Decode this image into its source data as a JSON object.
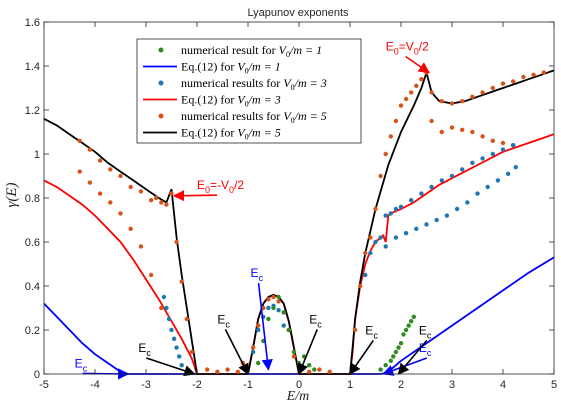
{
  "chart_data": {
    "type": "scatter",
    "title": "Lyapunov exponents",
    "xlabel": "E/m",
    "ylabel": "γ(E)",
    "xlim": [
      -5,
      5
    ],
    "ylim": [
      0,
      1.6
    ],
    "xticks": [
      -5,
      -4,
      -3,
      -2,
      -1,
      0,
      1,
      2,
      3,
      4,
      5
    ],
    "yticks": [
      0,
      0.2,
      0.4,
      0.6,
      0.8,
      1,
      1.2,
      1.4,
      1.6
    ],
    "xtick_labels": [
      "-5",
      "-4",
      "-3",
      "-2",
      "-1",
      "0",
      "1",
      "2",
      "3",
      "4",
      "5"
    ],
    "ytick_labels": [
      "0",
      "0.2",
      "0.4",
      "0.6",
      "0.8",
      "1",
      "1.2",
      "1.4",
      "1.6"
    ],
    "grid": false,
    "legend_position": "top-center",
    "legend": [
      {
        "text_plain": "numerical result for ",
        "text_italic": "V",
        "sub": "0",
        "tail": "/m = 1",
        "marker": "dot",
        "color": "#2e8b1e"
      },
      {
        "text_plain": "Eq.(12) for ",
        "text_italic": "V",
        "sub": "0",
        "tail": "/m = 1",
        "marker": "line",
        "color": "#0000ff"
      },
      {
        "text_plain": "numerical results for ",
        "text_italic": "V",
        "sub": "0",
        "tail": "/m = 3",
        "marker": "dot",
        "color": "#1f77b4"
      },
      {
        "text_plain": "Eq.(12) for ",
        "text_italic": "V",
        "sub": "0",
        "tail": "/m = 3",
        "marker": "line",
        "color": "#ff0000"
      },
      {
        "text_plain": "numerical results for ",
        "text_italic": "V",
        "sub": "0",
        "tail": "/m = 5",
        "marker": "dot",
        "color": "#d95319"
      },
      {
        "text_plain": "Eq.(12) for ",
        "text_italic": "V",
        "sub": "0",
        "tail": "/m = 5",
        "marker": "line",
        "color": "#000000"
      }
    ],
    "series": [
      {
        "kind": "line",
        "color": "#0000ff",
        "x": [
          -5,
          -4.75,
          -4.5,
          -4.25,
          -4,
          -3.75,
          -3.5,
          -3.35,
          -3.2,
          -3,
          -2,
          -1,
          -0.6,
          -0.3,
          0,
          0.5,
          1,
          1.35,
          1.6,
          1.7,
          1.85,
          2,
          2.25,
          2.5,
          3,
          3.5,
          4,
          4.5,
          5
        ],
        "y": [
          0.32,
          0.26,
          0.2,
          0.14,
          0.09,
          0.05,
          0.01,
          0,
          0,
          0,
          0,
          0,
          0,
          0,
          0,
          0,
          0,
          0,
          0,
          0.005,
          0.03,
          0.06,
          0.1,
          0.14,
          0.22,
          0.3,
          0.38,
          0.46,
          0.53
        ]
      },
      {
        "kind": "line",
        "color": "#ff0000",
        "x": [
          -5,
          -4.75,
          -4.5,
          -4.25,
          -4,
          -3.75,
          -3.5,
          -3.25,
          -3,
          -2.75,
          -2.5,
          -2.3,
          -2.1,
          -2,
          -1.5,
          -1,
          -0.9,
          -0.8,
          -0.7,
          -0.6,
          -0.5,
          -0.4,
          -0.3,
          -0.2,
          -0.1,
          0,
          0.5,
          1,
          1.05,
          1.1,
          1.2,
          1.3,
          1.4,
          1.5,
          1.6,
          1.65,
          1.7,
          1.75,
          1.8,
          1.9,
          2,
          2.25,
          2.5,
          2.75,
          3,
          3.25,
          3.5,
          3.75,
          4,
          4.25,
          4.5,
          4.75,
          5
        ],
        "y": [
          0.88,
          0.85,
          0.81,
          0.77,
          0.72,
          0.66,
          0.6,
          0.52,
          0.43,
          0.34,
          0.24,
          0.16,
          0.07,
          0,
          0,
          0,
          0.12,
          0.25,
          0.32,
          0.35,
          0.36,
          0.35,
          0.32,
          0.24,
          0.12,
          0,
          0,
          0,
          0.1,
          0.25,
          0.4,
          0.5,
          0.56,
          0.6,
          0.62,
          0.63,
          0.6,
          0.72,
          0.73,
          0.74,
          0.75,
          0.78,
          0.82,
          0.86,
          0.89,
          0.92,
          0.95,
          0.98,
          1.01,
          1.03,
          1.05,
          1.07,
          1.09
        ]
      },
      {
        "kind": "line",
        "color": "#000000",
        "x": [
          -5,
          -4.75,
          -4.5,
          -4.25,
          -4,
          -3.75,
          -3.5,
          -3.25,
          -3,
          -2.75,
          -2.6,
          -2.5,
          -2.4,
          -2.3,
          -2.2,
          -2.1,
          -2,
          -1.5,
          -1,
          -0.9,
          -0.8,
          -0.7,
          -0.6,
          -0.5,
          -0.4,
          -0.3,
          -0.2,
          -0.1,
          0,
          0.5,
          1,
          1.05,
          1.1,
          1.2,
          1.3,
          1.5,
          1.75,
          2,
          2.25,
          2.4,
          2.5,
          2.6,
          2.75,
          3,
          3.25,
          3.5,
          3.75,
          4,
          4.25,
          4.5,
          4.75,
          5
        ],
        "y": [
          1.16,
          1.13,
          1.09,
          1.05,
          1.01,
          0.96,
          0.92,
          0.88,
          0.84,
          0.8,
          0.78,
          0.84,
          0.62,
          0.45,
          0.3,
          0.15,
          0,
          0,
          0,
          0.12,
          0.25,
          0.32,
          0.35,
          0.36,
          0.35,
          0.32,
          0.24,
          0.12,
          0,
          0,
          0,
          0.12,
          0.25,
          0.42,
          0.55,
          0.75,
          0.95,
          1.1,
          1.22,
          1.3,
          1.37,
          1.28,
          1.24,
          1.23,
          1.24,
          1.26,
          1.28,
          1.3,
          1.32,
          1.34,
          1.36,
          1.38
        ]
      },
      {
        "kind": "scatter",
        "color": "#d95319",
        "name_ref": "V0/m=5",
        "x": [
          -4.3,
          -4.1,
          -3.9,
          -3.7,
          -3.5,
          -3.3,
          -3.1,
          -2.9,
          -2.8,
          -2.7,
          -2.6,
          -2.5,
          -2.4,
          -2.3,
          -2.2,
          -2.1,
          -4.3,
          -4.1,
          -3.9,
          -3.7,
          -3.5,
          -3.3,
          -3.1,
          -2.9,
          -2.7,
          -1.8,
          -1.6,
          -1.4,
          -1.2,
          -1.1,
          -0.9,
          -0.8,
          -0.7,
          -0.6,
          -0.5,
          -0.4,
          -0.3,
          -0.2,
          -0.1,
          0.2,
          0.4,
          0.6,
          1.1,
          1.2,
          1.3,
          1.4,
          1.5,
          1.6,
          1.7,
          1.8,
          1.9,
          2.0,
          2.1,
          2.2,
          2.3,
          2.4,
          2.5,
          2.6,
          2.8,
          3.0,
          3.2,
          3.4,
          3.6,
          3.8,
          4.0,
          4.2,
          4.4,
          4.6,
          4.8,
          2.6,
          2.8,
          3.0,
          3.2,
          3.4,
          3.6,
          3.8,
          4.0,
          4.2
        ],
        "y": [
          1.06,
          1.02,
          0.97,
          0.93,
          0.9,
          0.85,
          0.83,
          0.79,
          0.8,
          0.78,
          0.77,
          0.82,
          0.6,
          0.42,
          0.25,
          0.1,
          0.92,
          0.87,
          0.82,
          0.78,
          0.73,
          0.66,
          0.58,
          0.45,
          0.3,
          0.02,
          0.01,
          0.02,
          0.01,
          0.05,
          0.12,
          0.22,
          0.3,
          0.34,
          0.35,
          0.33,
          0.28,
          0.2,
          0.08,
          0.01,
          0.02,
          0.01,
          0.2,
          0.4,
          0.55,
          0.62,
          0.75,
          0.9,
          1.0,
          1.08,
          1.15,
          1.22,
          1.25,
          1.28,
          1.31,
          1.34,
          1.37,
          1.28,
          1.24,
          1.23,
          1.24,
          1.26,
          1.28,
          1.3,
          1.32,
          1.33,
          1.35,
          1.36,
          1.37,
          1.15,
          1.1,
          1.12,
          1.11,
          1.1,
          1.08,
          1.06,
          1.05,
          1.04
        ]
      },
      {
        "kind": "scatter",
        "color": "#1f77b4",
        "name_ref": "V0/m=3",
        "x": [
          -2.65,
          -2.6,
          -2.55,
          -2.5,
          -2.45,
          -2.4,
          -2.35,
          -2.3,
          -0.9,
          -0.8,
          -0.7,
          -0.6,
          -0.5,
          -0.4,
          -0.3,
          1.3,
          1.4,
          1.5,
          1.6,
          1.7,
          1.8,
          1.9,
          2.0,
          2.2,
          2.4,
          2.6,
          2.8,
          3.0,
          3.2,
          3.4,
          3.6,
          3.8,
          4.0,
          4.2,
          1.7,
          1.9,
          2.1,
          2.3,
          2.5,
          2.7,
          2.9,
          3.1,
          3.3,
          3.5,
          3.7,
          3.9,
          4.1,
          4.25
        ],
        "y": [
          0.35,
          0.3,
          0.25,
          0.2,
          0.16,
          0.12,
          0.08,
          0.04,
          0.1,
          0.2,
          0.26,
          0.3,
          0.31,
          0.29,
          0.22,
          0.45,
          0.55,
          0.6,
          0.62,
          0.72,
          0.73,
          0.75,
          0.76,
          0.79,
          0.82,
          0.85,
          0.88,
          0.9,
          0.93,
          0.96,
          0.98,
          1.0,
          1.02,
          1.04,
          0.58,
          0.62,
          0.64,
          0.66,
          0.68,
          0.7,
          0.72,
          0.75,
          0.78,
          0.82,
          0.85,
          0.88,
          0.91,
          0.94
        ]
      },
      {
        "kind": "scatter",
        "color": "#2e8b1e",
        "name_ref": "V0/m=1",
        "x": [
          -0.8,
          -0.7,
          -0.6,
          -0.5,
          -0.4,
          -0.3,
          -0.2,
          -0.1,
          0.0,
          0.1,
          0.2,
          0.3,
          1.6,
          1.7,
          1.8,
          1.9,
          2.0,
          2.05,
          2.1,
          2.15,
          2.2,
          2.25,
          1.85,
          1.95
        ],
        "y": [
          0.05,
          0.15,
          0.25,
          0.3,
          0.35,
          0.28,
          0.2,
          0.1,
          0.05,
          0.08,
          0.04,
          0.02,
          0.02,
          0.04,
          0.06,
          0.1,
          0.14,
          0.18,
          0.2,
          0.22,
          0.24,
          0.26,
          0.08,
          0.12
        ]
      }
    ],
    "annotations": [
      {
        "text": "E0=V0/2",
        "base": "E",
        "sub": "0",
        "mid": "=V",
        "sub2": "0",
        "tail": "/2",
        "color": "#ff0000",
        "x": 1.7,
        "y": 1.47,
        "ax": 2.55,
        "ay": 1.37
      },
      {
        "text": "E0=-V0/2",
        "base": "E",
        "sub": "0",
        "mid": "=-V",
        "sub2": "0",
        "tail": "/2",
        "color": "#ff0000",
        "x": -2.0,
        "y": 0.84,
        "ax": -2.45,
        "ay": 0.81
      },
      {
        "text": "Ec",
        "base": "E",
        "sub": "c",
        "color": "#0000ff",
        "x": -4.4,
        "y": 0.03,
        "ax": -3.35,
        "ay": 0.0
      },
      {
        "text": "Ec",
        "base": "E",
        "sub": "c",
        "color": "#0000ff",
        "x": -0.95,
        "y": 0.44,
        "ax": -0.6,
        "ay": 0.02
      },
      {
        "text": "Ec",
        "base": "E",
        "sub": "c",
        "color": "#0000ff",
        "x": 2.35,
        "y": 0.1,
        "ax": 1.65,
        "ay": 0.0
      },
      {
        "text": "Ec",
        "base": "E",
        "sub": "c",
        "color": "#000000",
        "x": -3.15,
        "y": 0.1,
        "ax": -2.05,
        "ay": 0.0
      },
      {
        "text": "Ec",
        "base": "E",
        "sub": "c",
        "color": "#000000",
        "x": -1.6,
        "y": 0.23,
        "ax": -1.0,
        "ay": 0.0
      },
      {
        "text": "Ec",
        "base": "E",
        "sub": "c",
        "color": "#000000",
        "x": 0.2,
        "y": 0.23,
        "ax": 0.0,
        "ay": 0.0
      },
      {
        "text": "Ec",
        "base": "E",
        "sub": "c",
        "color": "#000000",
        "x": 1.3,
        "y": 0.18,
        "ax": 1.0,
        "ay": 0.0
      },
      {
        "text": "Ec",
        "base": "E",
        "sub": "c",
        "color": "#000000",
        "x": 2.35,
        "y": 0.18,
        "ax": 1.95,
        "ay": 0.0
      }
    ]
  }
}
